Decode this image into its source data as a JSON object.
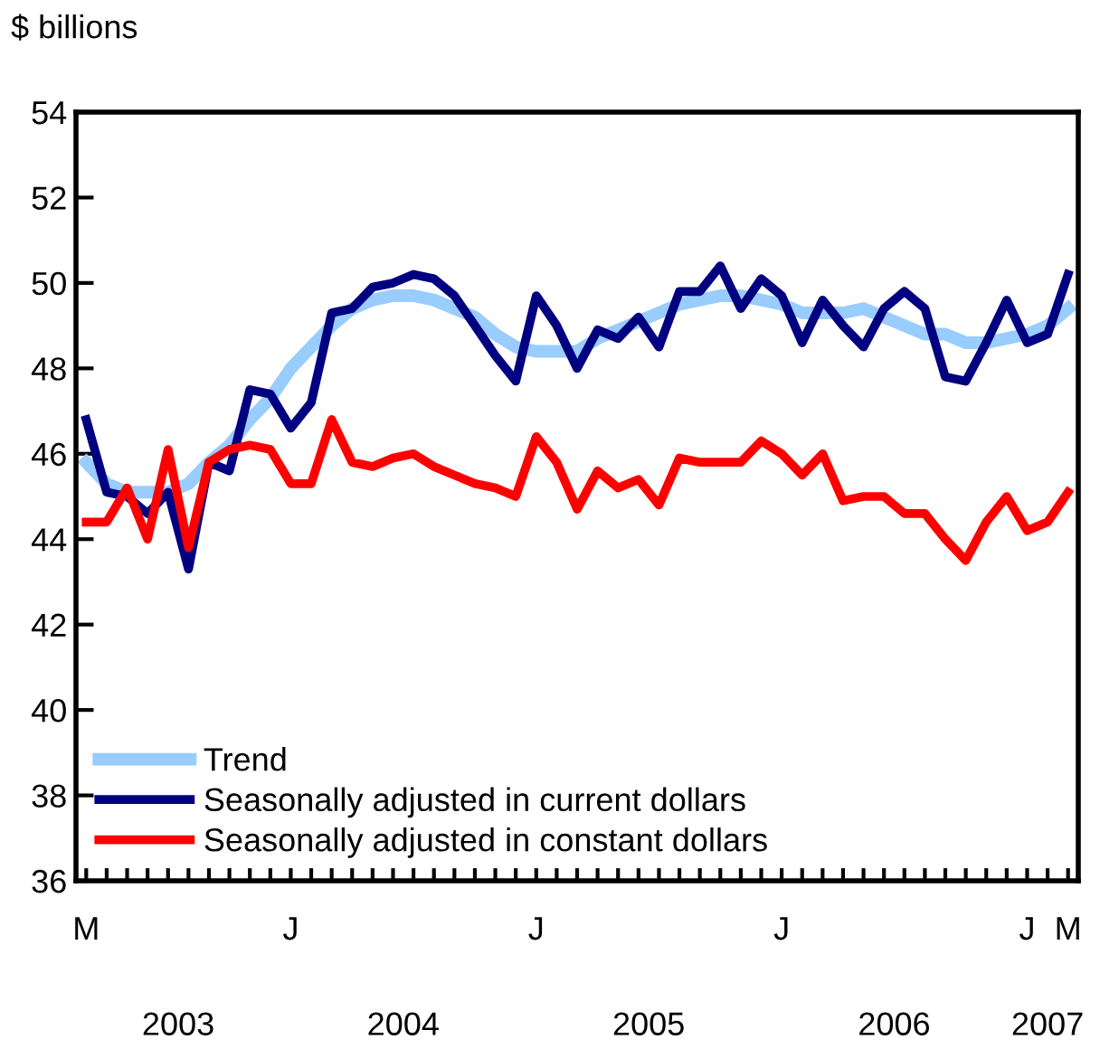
{
  "chart_data": {
    "type": "line",
    "ylabel": "$ billions",
    "categories": [
      "M",
      null,
      null,
      null,
      null,
      null,
      null,
      null,
      null,
      null,
      "J",
      null,
      null,
      null,
      null,
      null,
      null,
      null,
      null,
      null,
      null,
      null,
      "J",
      null,
      null,
      null,
      null,
      null,
      null,
      null,
      null,
      null,
      null,
      null,
      "J",
      null,
      null,
      null,
      null,
      null,
      null,
      null,
      null,
      null,
      null,
      null,
      "J",
      null,
      "M"
    ],
    "annotations": [
      "2003",
      "2004",
      "2005",
      "2006",
      "2007"
    ],
    "series": [
      {
        "name": "Trend",
        "color": "#99ccff",
        "values": [
          45.8,
          45.3,
          45.1,
          45.1,
          45.1,
          45.3,
          45.8,
          46.2,
          46.8,
          47.3,
          48.0,
          48.5,
          49.0,
          49.4,
          49.6,
          49.7,
          49.7,
          49.6,
          49.4,
          49.2,
          48.8,
          48.5,
          48.4,
          48.4,
          48.4,
          48.7,
          48.9,
          49.1,
          49.3,
          49.5,
          49.6,
          49.7,
          49.7,
          49.6,
          49.5,
          49.3,
          49.3,
          49.3,
          49.4,
          49.2,
          49.0,
          48.8,
          48.8,
          48.6,
          48.6,
          48.7,
          48.8,
          49.0,
          49.4
        ]
      },
      {
        "name": "Seasonally adjusted in current dollars",
        "color": "#000080",
        "values": [
          46.8,
          45.1,
          45.0,
          44.6,
          45.1,
          43.3,
          45.8,
          45.6,
          47.5,
          47.4,
          46.6,
          47.2,
          49.3,
          49.4,
          49.9,
          50.0,
          50.2,
          50.1,
          49.7,
          49.0,
          48.3,
          47.7,
          49.7,
          49.0,
          48.0,
          48.9,
          48.7,
          49.2,
          48.5,
          49.8,
          49.8,
          50.4,
          49.4,
          50.1,
          49.7,
          48.6,
          49.6,
          49.0,
          48.5,
          49.4,
          49.8,
          49.4,
          47.8,
          47.7,
          48.6,
          49.6,
          48.6,
          48.8,
          50.2
        ]
      },
      {
        "name": "Seasonally adjusted in constant dollars",
        "color": "#ff0000",
        "values": [
          44.4,
          44.4,
          45.2,
          44.0,
          46.1,
          43.8,
          45.8,
          46.1,
          46.2,
          46.1,
          45.3,
          45.3,
          46.8,
          45.8,
          45.7,
          45.9,
          46.0,
          45.7,
          45.5,
          45.3,
          45.2,
          45.0,
          46.4,
          45.8,
          44.7,
          45.6,
          45.2,
          45.4,
          44.8,
          45.9,
          45.8,
          45.8,
          45.8,
          46.3,
          46.0,
          45.5,
          46.0,
          44.9,
          45.0,
          45.0,
          44.6,
          44.6,
          44.0,
          43.5,
          44.4,
          45.0,
          44.2,
          44.4,
          45.1
        ]
      }
    ],
    "ylim": [
      36,
      54
    ],
    "yticks": [
      36,
      38,
      40,
      42,
      44,
      46,
      48,
      50,
      52,
      54
    ],
    "legend": "bottom left",
    "marker": "none",
    "line_style": "solid",
    "grid": false
  }
}
